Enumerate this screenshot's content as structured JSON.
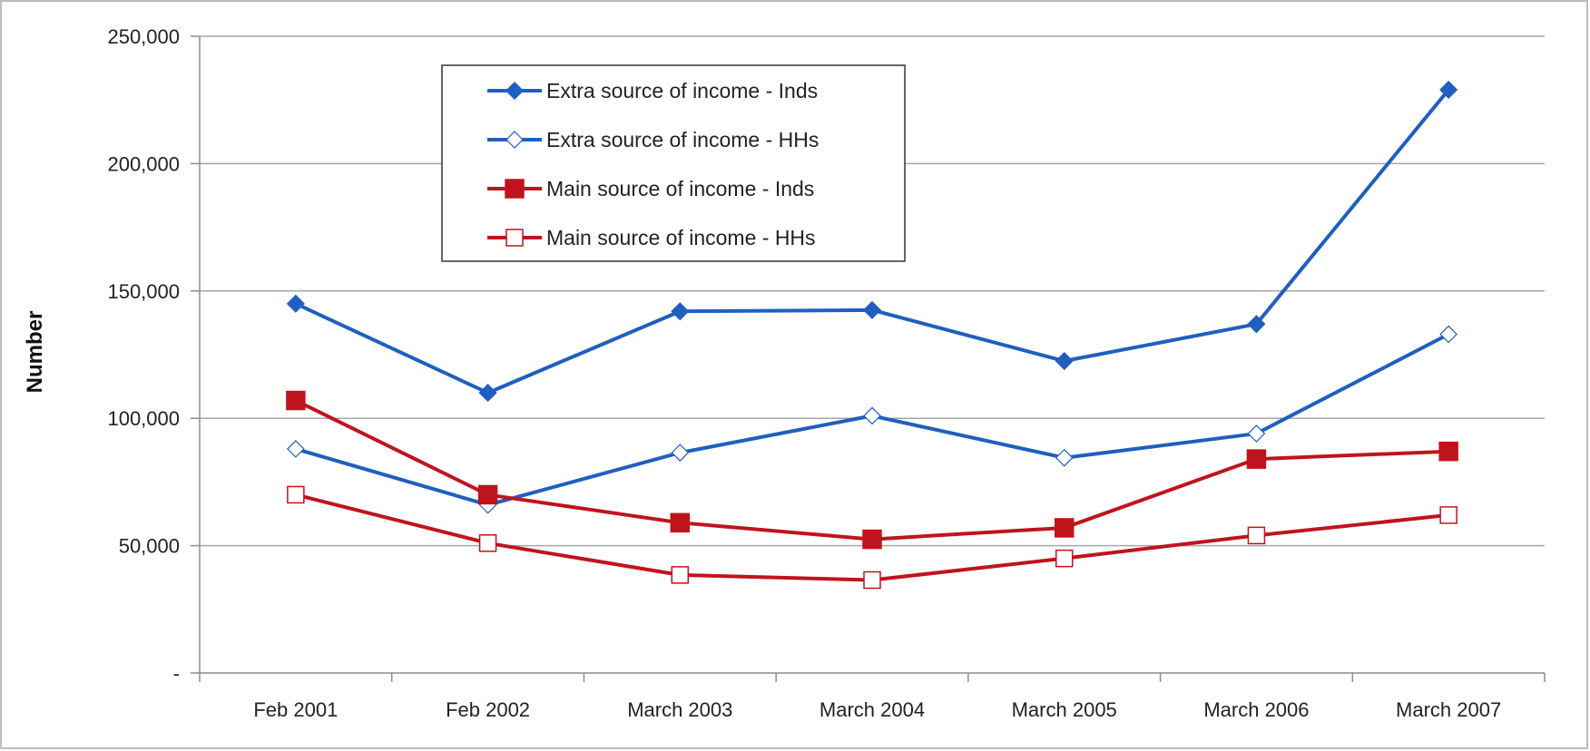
{
  "chart_data": {
    "type": "line",
    "title": "",
    "xlabel": "",
    "ylabel": "Number",
    "categories": [
      "Feb 2001",
      "Feb 2002",
      "March 2003",
      "March 2004",
      "March 2005",
      "March 2006",
      "March 2007"
    ],
    "ylim": [
      0,
      250000
    ],
    "yticks": [
      0,
      50000,
      100000,
      150000,
      200000,
      250000
    ],
    "ytick_labels": [
      "-",
      "50,000",
      "100,000",
      "150,000",
      "200,000",
      "250,000"
    ],
    "grid": true,
    "legend_position": "top-left inside plot",
    "series": [
      {
        "name": "Extra source of income - Inds",
        "color": "#1f5fbf",
        "marker": "filled-diamond",
        "values": [
          145000,
          110000,
          142000,
          142500,
          122500,
          137000,
          229000
        ]
      },
      {
        "name": "Extra source of income - HHs",
        "color": "#1f5fbf",
        "marker": "open-diamond",
        "values": [
          88000,
          66000,
          86500,
          101000,
          84500,
          94000,
          133000
        ]
      },
      {
        "name": "Main source of income - Inds",
        "color": "#c0141c",
        "marker": "filled-square",
        "values": [
          107000,
          70000,
          59000,
          52500,
          57000,
          84000,
          87000
        ]
      },
      {
        "name": "Main source of income - HHs",
        "color": "#c0141c",
        "marker": "open-square",
        "values": [
          70000,
          51000,
          38500,
          36500,
          45000,
          54000,
          62000
        ]
      }
    ]
  }
}
